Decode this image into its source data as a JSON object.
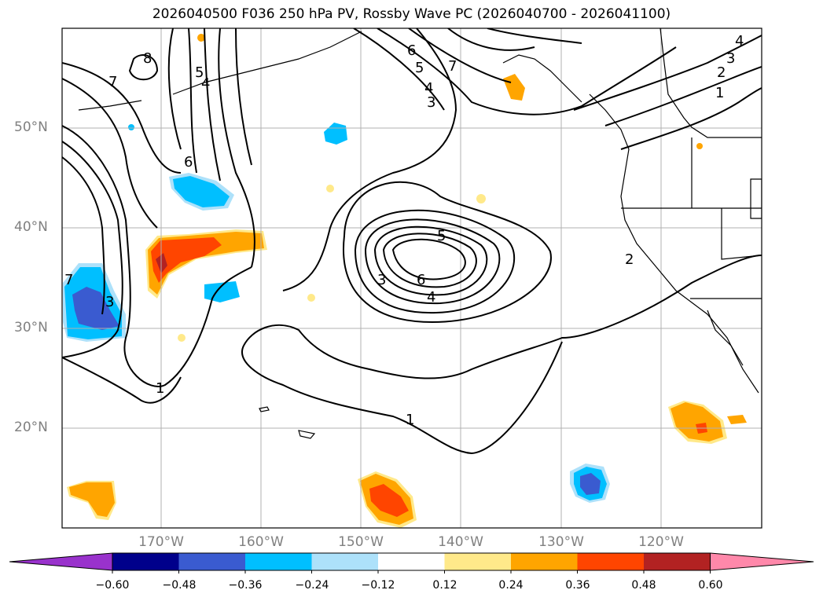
{
  "title": "2026040500 F036 250 hPa PV, Rossby Wave PC (2026040700 - 2026041100)",
  "lat_labels": [
    "50°N",
    "40°N",
    "30°N",
    "20°N"
  ],
  "lon_labels": [
    "170°W",
    "160°W",
    "150°W",
    "140°W",
    "130°W",
    "120°W"
  ],
  "colorbar": {
    "tick_labels": [
      "−0.60",
      "−0.48",
      "−0.36",
      "−0.24",
      "−0.12",
      "0.12",
      "0.24",
      "0.36",
      "0.48",
      "0.60"
    ],
    "colors": [
      "#9932CC",
      "#00008B",
      "#3A5BD0",
      "#00BFFF",
      "#ADE1FA",
      "#FFFFFF",
      "#FFE98A",
      "#FFA500",
      "#FF4500",
      "#B22222",
      "#FF88AA"
    ]
  },
  "contour_labels": [
    "8",
    "7",
    "5",
    "4",
    "6",
    "3",
    "1",
    "7",
    "6",
    "5",
    "4",
    "3",
    "5",
    "6",
    "4",
    "3",
    "1",
    "4",
    "3",
    "2",
    "1",
    "2",
    "7"
  ],
  "colors": {
    "contour": "#000000",
    "grid": "#b0b0b0",
    "coast": "#000000"
  }
}
